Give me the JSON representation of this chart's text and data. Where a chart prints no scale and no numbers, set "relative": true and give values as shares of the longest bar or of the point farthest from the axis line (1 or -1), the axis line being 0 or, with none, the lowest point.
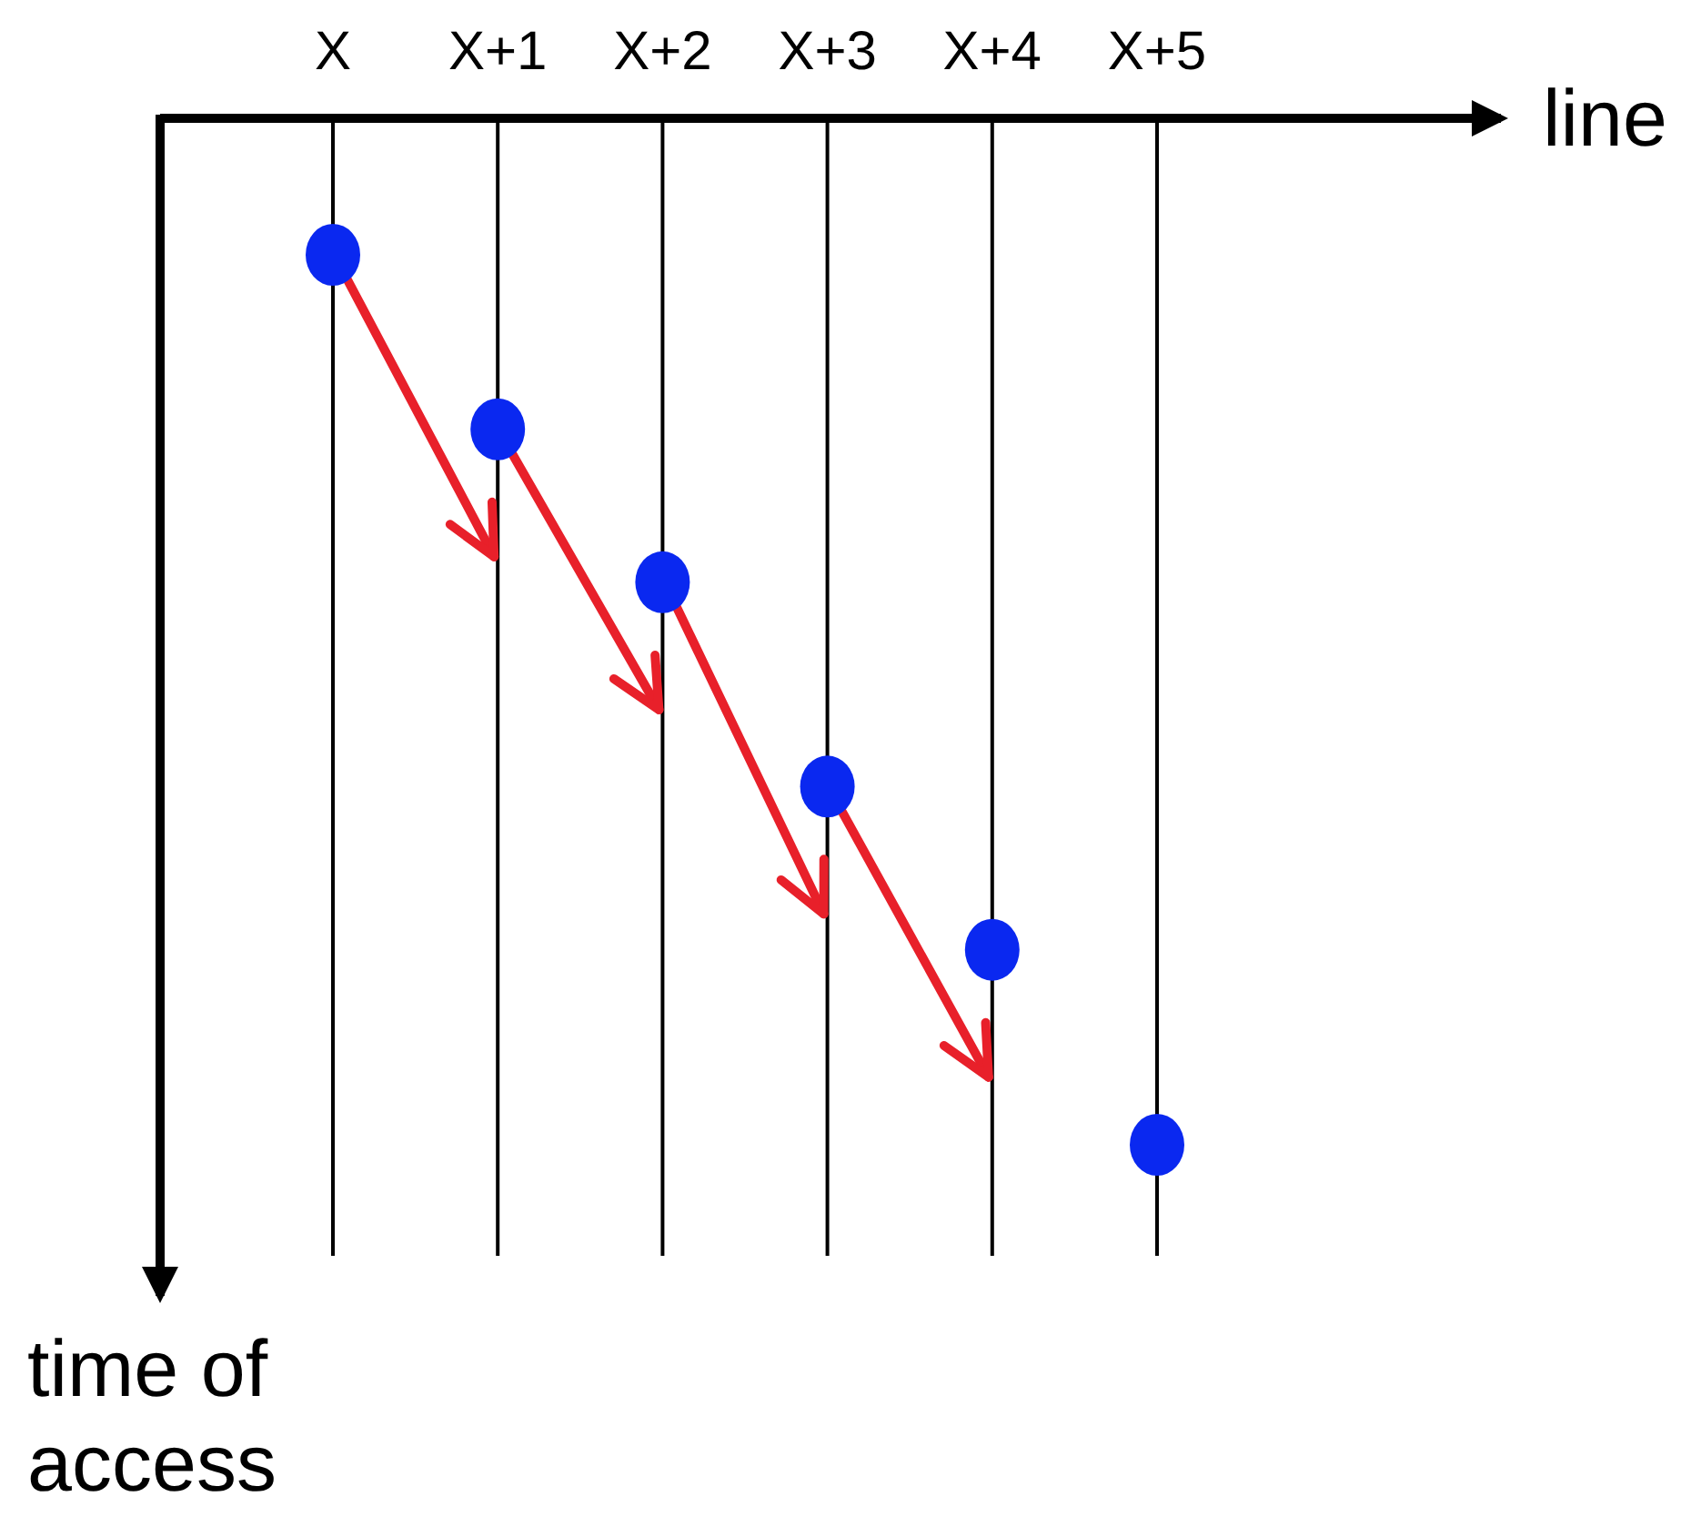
{
  "chart_data": {
    "type": "scatter",
    "relative": true,
    "xlabel": "line",
    "ylabel": "time of access",
    "categories": [
      "X",
      "X+1",
      "X+2",
      "X+3",
      "X+4",
      "X+5"
    ],
    "series": [
      {
        "color": "#0a28f0",
        "values": [
          -0.133,
          -0.303,
          -0.452,
          -0.651,
          -0.81,
          -1
        ]
      }
    ],
    "grid": "x",
    "marker": "circle"
  }
}
